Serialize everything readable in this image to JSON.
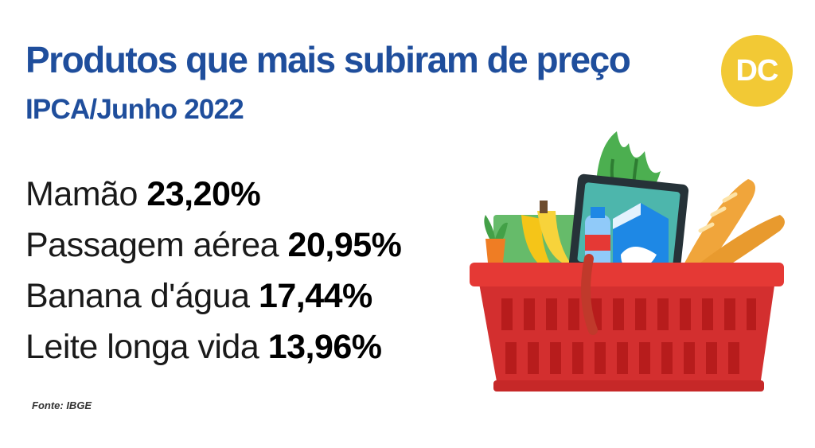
{
  "header": {
    "title": "Produtos que mais subiram de preço",
    "subtitle": "IPCA/Junho 2022"
  },
  "logo": {
    "text": "DC",
    "color": "#f2c935"
  },
  "items": [
    {
      "name": "Mamão",
      "value": "23,20%"
    },
    {
      "name": "Passagem aérea",
      "value": "20,95%"
    },
    {
      "name": "Banana d'água",
      "value": "17,44%"
    },
    {
      "name": "Leite longa vida",
      "value": "13,96%"
    }
  ],
  "source": "Fonte: IBGE",
  "illustration": {
    "name": "grocery-basket-icon",
    "basket_color": "#d32f2f"
  }
}
